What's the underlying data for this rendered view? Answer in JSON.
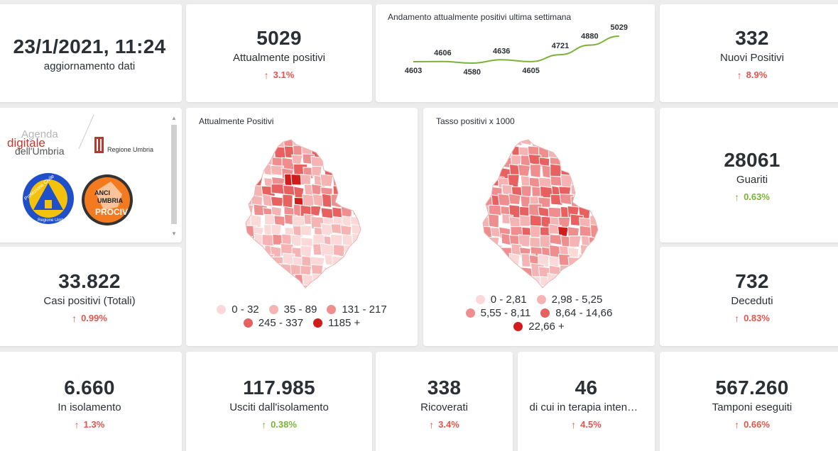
{
  "update": {
    "datetime": "23/1/2021, 11:24",
    "label": "aggiornamento dati"
  },
  "kpis": {
    "attualmente": {
      "value": "5029",
      "label": "Attualmente positivi",
      "change": "3.1%"
    },
    "nuovi": {
      "value": "332",
      "label": "Nuovi Positivi",
      "change": "8.9%"
    },
    "guariti": {
      "value": "28061",
      "label": "Guariti",
      "change": "0.63%"
    },
    "casi": {
      "value": "33.822",
      "label": "Casi positivi (Totali)",
      "change": "0.99%"
    },
    "deceduti": {
      "value": "732",
      "label": "Deceduti",
      "change": "0.83%"
    },
    "isolamento": {
      "value": "6.660",
      "label": "In isolamento",
      "change": "1.3%"
    },
    "usciti": {
      "value": "117.985",
      "label": "Usciti dall'isolamento",
      "change": "0.38%"
    },
    "ricoverati": {
      "value": "338",
      "label": "Ricoverati",
      "change": "3.4%"
    },
    "terapia": {
      "value": "46",
      "label": "di cui in terapia intensiva",
      "change": "4.5%"
    },
    "tamponi": {
      "value": "567.260",
      "label": "Tamponi eseguiti",
      "change": "0.66%"
    }
  },
  "icons": {
    "up": "arrow-up-icon"
  },
  "colors": {
    "red": "#e0564f",
    "green": "#7bb339",
    "line": "#7bb339"
  },
  "logos": {
    "agenda_line1": "Agenda",
    "agenda_line2": "digitale",
    "agenda_line3": "dell'Umbria",
    "regione": "Regione Umbria",
    "protezione": "Protezione Civile",
    "protezione_sub": "Regione Umbria",
    "anci1": "ANCI",
    "anci2": "UMBRIA",
    "anci3": "PROCIV"
  },
  "chart_data": {
    "type": "line",
    "title": "Andamento attualmente positivi ultima settimana",
    "values": [
      4603,
      4606,
      4580,
      4636,
      4605,
      4721,
      4880,
      5029
    ],
    "labels": [
      "4603",
      "4606",
      "4580",
      "4636",
      "4605",
      "4721",
      "4880",
      "5029"
    ],
    "color": "#7bb339"
  },
  "map1": {
    "title": "Attualmente Positivi",
    "legend": [
      {
        "label": "0 - 32",
        "color": "#fbd9d9"
      },
      {
        "label": "35 - 89",
        "color": "#f6b3b3"
      },
      {
        "label": "131 - 217",
        "color": "#ef8e8e"
      },
      {
        "label": "245 - 337",
        "color": "#e86161"
      },
      {
        "label": "1185 +",
        "color": "#d21b1b"
      }
    ]
  },
  "map2": {
    "title": "Tasso positivi x 1000",
    "legend": [
      {
        "label": "0 - 2,81",
        "color": "#fbd9d9"
      },
      {
        "label": "2,98 - 5,25",
        "color": "#f6b3b3"
      },
      {
        "label": "5,55 - 8,11",
        "color": "#ef8e8e"
      },
      {
        "label": "8,64 - 14,66",
        "color": "#e86161"
      },
      {
        "label": "22,66 +",
        "color": "#d21b1b"
      }
    ]
  }
}
